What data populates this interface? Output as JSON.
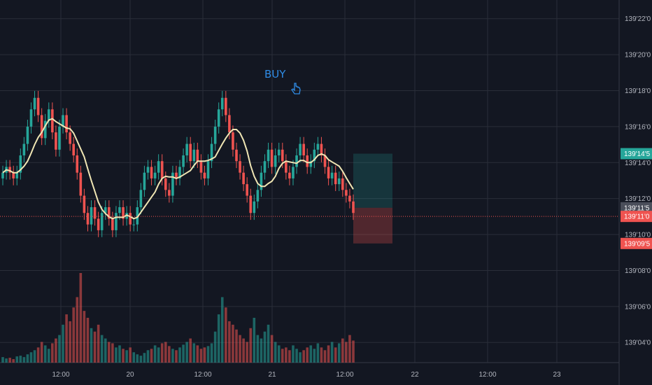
{
  "chart_data": {
    "type": "candlestick",
    "price_axis": {
      "ticks": [
        "139'22'0",
        "139'20'0",
        "139'18'0",
        "139'16'0",
        "139'14'0",
        "139'12'0",
        "139'10'0",
        "139'08'0",
        "139'06'0",
        "139'04'0"
      ],
      "tick_values": [
        139.6875,
        139.625,
        139.5625,
        139.5,
        139.4375,
        139.375,
        139.3125,
        139.25,
        139.1875,
        139.125
      ],
      "range": [
        139.09,
        139.72
      ]
    },
    "time_axis": {
      "labels": [
        "12:00",
        "20",
        "12:00",
        "21",
        "12:00",
        "22",
        "12:00",
        "23"
      ]
    },
    "price_badges": [
      {
        "text": "139'14'5",
        "value": 139.453,
        "color": "#26a69a"
      },
      {
        "text": "139'11'5",
        "value": 139.359,
        "color": "#4a4e5a"
      },
      {
        "text": "139'11'0",
        "value": 139.344,
        "color": "#ef5350"
      },
      {
        "text": "139'09'5",
        "value": 139.297,
        "color": "#ef5350"
      }
    ],
    "last_price": 139.344,
    "buy_annotation": {
      "text": "BUY",
      "icon": "hand-pointer-icon"
    },
    "position": {
      "entry": 139.359,
      "target": 139.453,
      "stop": 139.297
    },
    "moving_average": {
      "color": "#f0e6b4"
    },
    "colors": {
      "up": "#26a69a",
      "down": "#ef5350",
      "grid": "#2a2e39",
      "background": "#131722"
    },
    "candles_close": [
      139.42,
      139.43,
      139.42,
      139.41,
      139.42,
      139.45,
      139.47,
      139.5,
      139.53,
      139.55,
      139.52,
      139.48,
      139.51,
      139.53,
      139.49,
      139.46,
      139.5,
      139.52,
      139.49,
      139.47,
      139.45,
      139.42,
      139.38,
      139.35,
      139.33,
      139.36,
      139.34,
      139.32,
      139.35,
      139.36,
      139.34,
      139.32,
      139.35,
      139.36,
      139.34,
      139.35,
      139.33,
      139.33,
      139.36,
      139.39,
      139.42,
      139.43,
      139.41,
      139.42,
      139.44,
      139.41,
      139.39,
      139.38,
      139.42,
      139.41,
      139.43,
      139.45,
      139.47,
      139.44,
      139.46,
      139.44,
      139.42,
      139.41,
      139.44,
      139.47,
      139.5,
      139.53,
      139.55,
      139.52,
      139.49,
      139.46,
      139.44,
      139.42,
      139.4,
      139.38,
      139.35,
      139.37,
      139.39,
      139.42,
      139.44,
      139.46,
      139.43,
      139.45,
      139.46,
      139.44,
      139.42,
      139.41,
      139.43,
      139.45,
      139.47,
      139.45,
      139.43,
      139.44,
      139.46,
      139.47,
      139.45,
      139.43,
      139.41,
      139.42,
      139.4,
      139.41,
      139.39,
      139.38,
      139.37,
      139.35
    ],
    "candles_open": [
      139.41,
      139.42,
      139.43,
      139.42,
      139.41,
      139.42,
      139.45,
      139.47,
      139.5,
      139.53,
      139.55,
      139.52,
      139.48,
      139.51,
      139.53,
      139.49,
      139.46,
      139.5,
      139.52,
      139.49,
      139.47,
      139.45,
      139.42,
      139.38,
      139.35,
      139.33,
      139.36,
      139.34,
      139.32,
      139.35,
      139.36,
      139.34,
      139.32,
      139.35,
      139.36,
      139.34,
      139.35,
      139.33,
      139.33,
      139.36,
      139.39,
      139.42,
      139.43,
      139.41,
      139.42,
      139.44,
      139.41,
      139.39,
      139.38,
      139.42,
      139.41,
      139.43,
      139.45,
      139.47,
      139.44,
      139.46,
      139.44,
      139.42,
      139.41,
      139.44,
      139.47,
      139.5,
      139.53,
      139.55,
      139.52,
      139.49,
      139.46,
      139.44,
      139.42,
      139.4,
      139.38,
      139.35,
      139.37,
      139.39,
      139.42,
      139.44,
      139.46,
      139.43,
      139.45,
      139.46,
      139.44,
      139.42,
      139.41,
      139.43,
      139.45,
      139.47,
      139.45,
      139.43,
      139.44,
      139.46,
      139.47,
      139.45,
      139.43,
      139.41,
      139.42,
      139.4,
      139.41,
      139.39,
      139.38,
      139.37
    ],
    "volume": [
      8,
      6,
      7,
      5,
      9,
      10,
      8,
      12,
      15,
      18,
      22,
      30,
      25,
      20,
      28,
      35,
      40,
      55,
      70,
      60,
      80,
      95,
      130,
      75,
      65,
      50,
      45,
      55,
      40,
      35,
      30,
      28,
      22,
      25,
      20,
      18,
      22,
      15,
      12,
      10,
      14,
      18,
      20,
      25,
      22,
      28,
      30,
      24,
      20,
      18,
      22,
      26,
      30,
      35,
      28,
      25,
      20,
      22,
      24,
      28,
      45,
      70,
      95,
      80,
      60,
      55,
      48,
      40,
      35,
      30,
      50,
      65,
      40,
      35,
      45,
      55,
      40,
      30,
      25,
      20,
      22,
      18,
      25,
      20,
      15,
      18,
      22,
      25,
      20,
      28,
      22,
      18,
      25,
      30,
      22,
      28,
      35,
      30,
      40,
      32
    ]
  }
}
